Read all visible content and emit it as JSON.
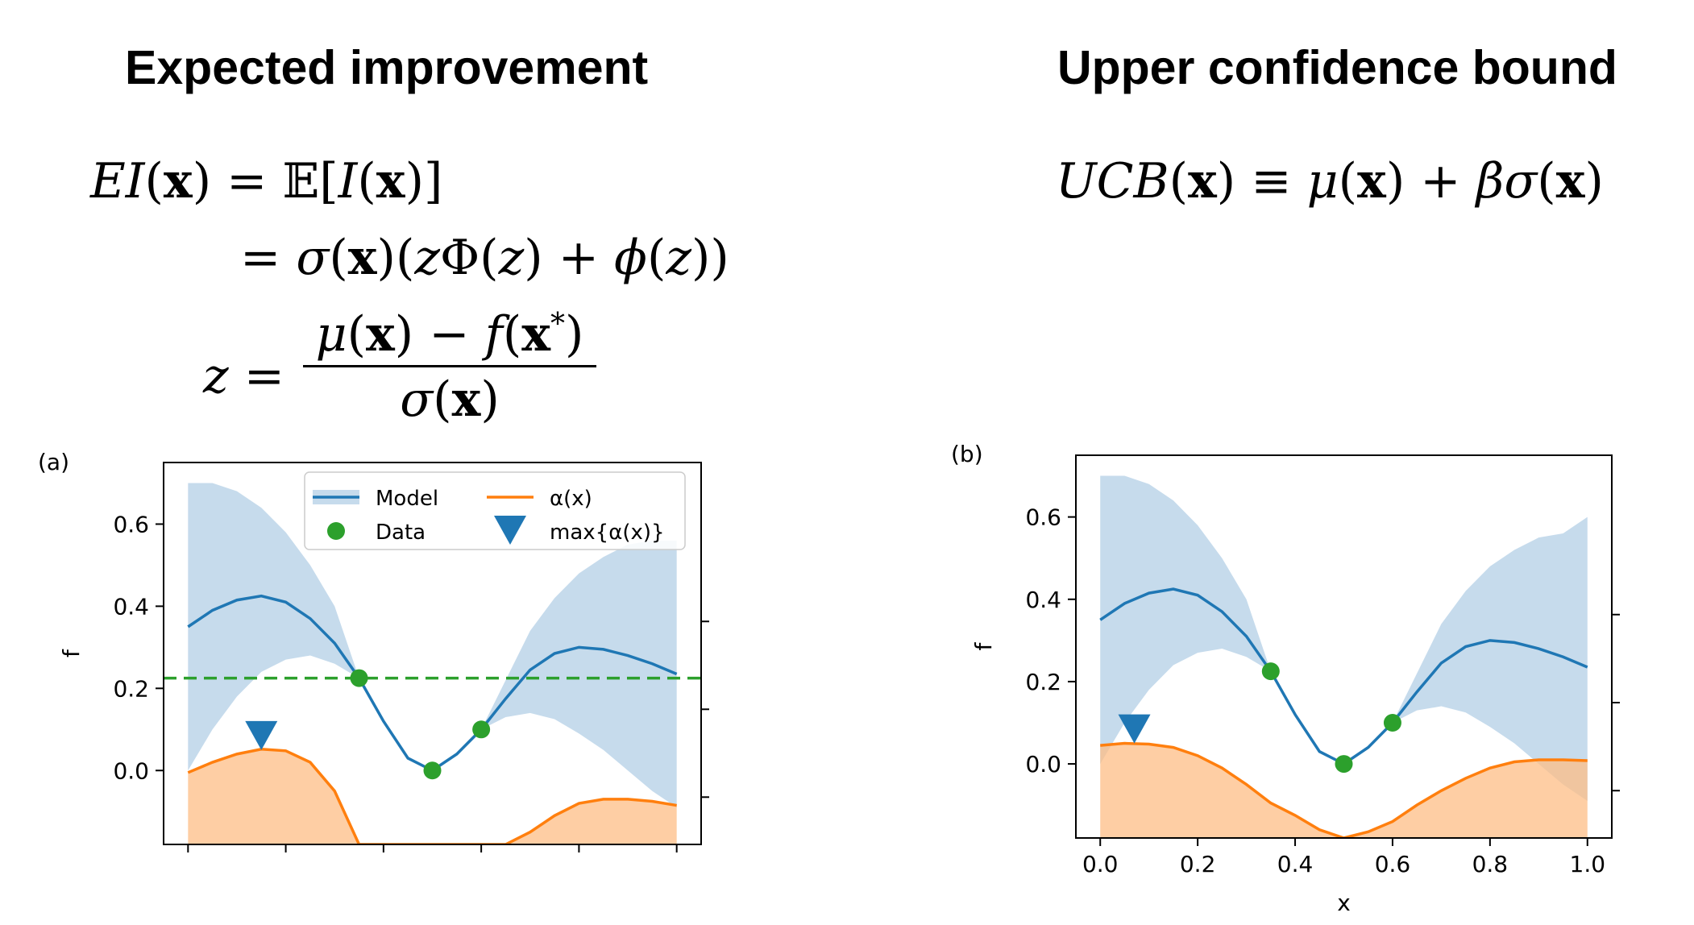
{
  "titles": {
    "left": "Expected improvement",
    "right": "Upper confidence bound"
  },
  "colors": {
    "model": "#1f77b4",
    "band": "#c6dbec",
    "acq_line": "#ff7f0e",
    "acq_fill": "#fdbd85",
    "data": "#2ca02c",
    "incumbent": "#2ca02c",
    "max_marker": "#1f77b4"
  },
  "legend": {
    "model": "Model",
    "data": "Data",
    "acq": "α(x)",
    "max": "max{α(x)}"
  },
  "chart_data": [
    {
      "panel": "(a)",
      "type": "line",
      "title": "",
      "xlabel": "",
      "ylabel": "f",
      "xlim": [
        -0.05,
        1.05
      ],
      "ylim": [
        -0.18,
        0.75
      ],
      "x_ticks": [
        0.0,
        0.2,
        0.4,
        0.6,
        0.8,
        1.0
      ],
      "x_tick_labels_shown": false,
      "y_ticks": [
        0.0,
        0.2,
        0.4,
        0.6
      ],
      "y_tick_labels": [
        "0.0",
        "0.2",
        "0.4",
        "0.6"
      ],
      "legend_position": "top-right",
      "incumbent_line": 0.225,
      "series": [
        {
          "name": "Model",
          "x": [
            0,
            0.05,
            0.1,
            0.15,
            0.2,
            0.25,
            0.3,
            0.35,
            0.4,
            0.45,
            0.5,
            0.55,
            0.6,
            0.65,
            0.7,
            0.75,
            0.8,
            0.85,
            0.9,
            0.95,
            1.0
          ],
          "y": [
            0.35,
            0.39,
            0.415,
            0.425,
            0.41,
            0.37,
            0.31,
            0.225,
            0.12,
            0.03,
            0.0,
            0.04,
            0.1,
            0.175,
            0.245,
            0.285,
            0.3,
            0.295,
            0.28,
            0.26,
            0.235
          ],
          "lower": [
            0.0,
            0.1,
            0.18,
            0.24,
            0.27,
            0.28,
            0.26,
            0.225,
            0.12,
            0.03,
            0.0,
            0.04,
            0.1,
            0.13,
            0.14,
            0.125,
            0.09,
            0.05,
            0.0,
            -0.05,
            -0.09
          ],
          "upper": [
            0.7,
            0.7,
            0.68,
            0.64,
            0.58,
            0.5,
            0.4,
            0.225,
            0.12,
            0.03,
            0.0,
            0.04,
            0.1,
            0.22,
            0.34,
            0.42,
            0.48,
            0.52,
            0.55,
            0.56,
            0.56
          ]
        },
        {
          "name": "α(x)",
          "x": [
            0,
            0.05,
            0.1,
            0.15,
            0.2,
            0.25,
            0.3,
            0.35,
            0.4,
            0.45,
            0.5,
            0.55,
            0.6,
            0.65,
            0.7,
            0.75,
            0.8,
            0.85,
            0.9,
            0.95,
            1.0
          ],
          "y": [
            -0.005,
            0.02,
            0.04,
            0.052,
            0.048,
            0.02,
            -0.05,
            -0.18,
            -0.18,
            -0.18,
            -0.18,
            -0.18,
            -0.18,
            -0.18,
            -0.15,
            -0.11,
            -0.08,
            -0.07,
            -0.07,
            -0.075,
            -0.085
          ]
        },
        {
          "name": "Data",
          "x": [
            0.35,
            0.5,
            0.6
          ],
          "y": [
            0.225,
            0.0,
            0.1
          ]
        },
        {
          "name": "max{α(x)}",
          "x": [
            0.15
          ],
          "y": [
            0.085
          ]
        }
      ]
    },
    {
      "panel": "(b)",
      "type": "line",
      "title": "",
      "xlabel": "x",
      "ylabel": "f",
      "xlim": [
        -0.05,
        1.05
      ],
      "ylim": [
        -0.18,
        0.75
      ],
      "x_ticks": [
        0.0,
        0.2,
        0.4,
        0.6,
        0.8,
        1.0
      ],
      "x_tick_labels": [
        "0.0",
        "0.2",
        "0.4",
        "0.6",
        "0.8",
        "1.0"
      ],
      "y_ticks": [
        0.0,
        0.2,
        0.4,
        0.6
      ],
      "y_tick_labels": [
        "0.0",
        "0.2",
        "0.4",
        "0.6"
      ],
      "series": [
        {
          "name": "Model",
          "x": [
            0,
            0.05,
            0.1,
            0.15,
            0.2,
            0.25,
            0.3,
            0.35,
            0.4,
            0.45,
            0.5,
            0.55,
            0.6,
            0.65,
            0.7,
            0.75,
            0.8,
            0.85,
            0.9,
            0.95,
            1.0
          ],
          "y": [
            0.35,
            0.39,
            0.415,
            0.425,
            0.41,
            0.37,
            0.31,
            0.225,
            0.12,
            0.03,
            0.0,
            0.04,
            0.1,
            0.175,
            0.245,
            0.285,
            0.3,
            0.295,
            0.28,
            0.26,
            0.235
          ],
          "lower": [
            0.0,
            0.1,
            0.18,
            0.24,
            0.27,
            0.28,
            0.26,
            0.225,
            0.12,
            0.03,
            0.0,
            0.04,
            0.1,
            0.13,
            0.14,
            0.125,
            0.09,
            0.05,
            0.0,
            -0.05,
            -0.09
          ],
          "upper": [
            0.7,
            0.7,
            0.68,
            0.64,
            0.58,
            0.5,
            0.4,
            0.225,
            0.12,
            0.03,
            0.0,
            0.04,
            0.1,
            0.22,
            0.34,
            0.42,
            0.48,
            0.52,
            0.55,
            0.56,
            0.6
          ]
        },
        {
          "name": "α(x)",
          "x": [
            0,
            0.05,
            0.1,
            0.15,
            0.2,
            0.25,
            0.3,
            0.35,
            0.4,
            0.45,
            0.5,
            0.55,
            0.6,
            0.65,
            0.7,
            0.75,
            0.8,
            0.85,
            0.9,
            0.95,
            1.0
          ],
          "y": [
            0.045,
            0.05,
            0.048,
            0.04,
            0.02,
            -0.01,
            -0.05,
            -0.095,
            -0.125,
            -0.16,
            -0.18,
            -0.165,
            -0.14,
            -0.1,
            -0.065,
            -0.035,
            -0.01,
            0.005,
            0.01,
            0.01,
            0.008
          ]
        },
        {
          "name": "Data",
          "x": [
            0.35,
            0.5,
            0.6
          ],
          "y": [
            0.225,
            0.0,
            0.1
          ]
        },
        {
          "name": "max{α(x)}",
          "x": [
            0.07
          ],
          "y": [
            0.085
          ]
        }
      ]
    }
  ]
}
